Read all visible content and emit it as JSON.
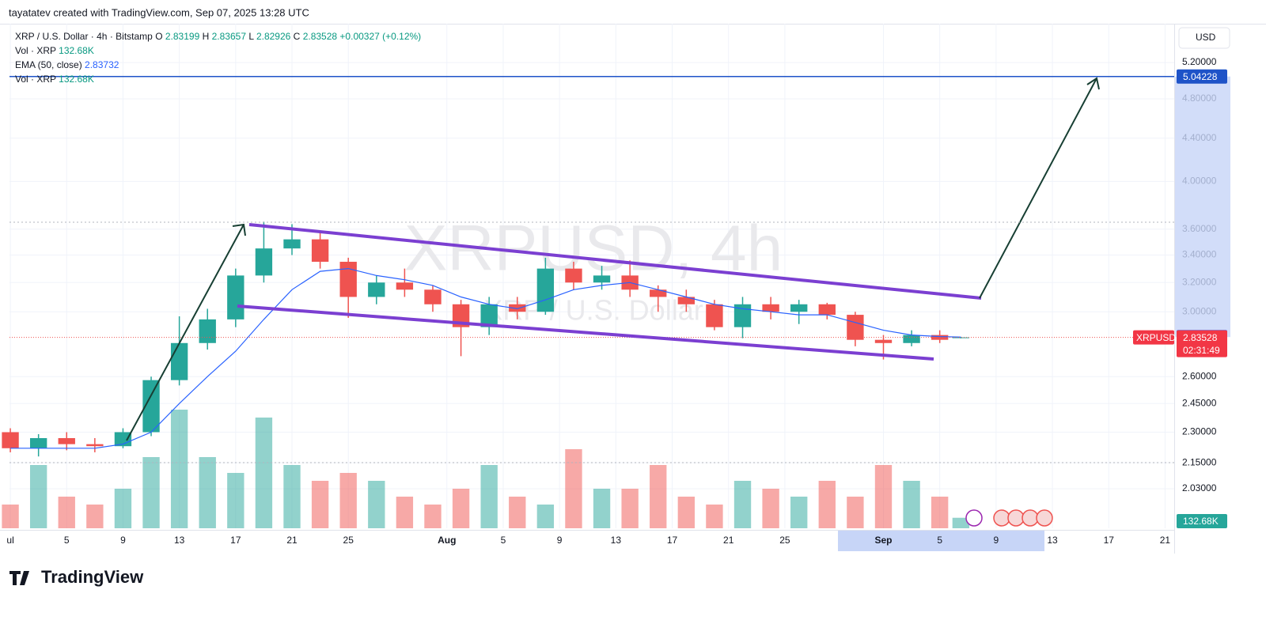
{
  "header": {
    "credit": "tayatatev created with TradingView.com, Sep 07, 2025 13:28 UTC",
    "currency": "USD",
    "logo": "TradingView"
  },
  "legend": {
    "symbol": "XRP / U.S. Dollar · 4h · Bitstamp",
    "o_label": "O",
    "o": 2.83199,
    "h_label": "H",
    "h": 2.83657,
    "l_label": "L",
    "l": 2.82926,
    "c_label": "C",
    "c": 2.83528,
    "change": "+0.00327 (+0.12%)",
    "vol_name": "Vol · XRP",
    "vol_value": "132.68K",
    "ema_name": "EMA (50, close)",
    "ema_value": 2.83732,
    "vol_name_2": "Vol · XRP",
    "vol_value_2": "132.68K"
  },
  "watermark": {
    "title": "XRPUSD, 4h",
    "subtitle": "XRP / U.S. Dollar"
  },
  "tags": {
    "symbol": "XRPUSD",
    "countdown": "02:31:49"
  },
  "chart_data": {
    "type": "candlestick",
    "log_scale": true,
    "grid": true,
    "up_color": "#26a69a",
    "down_color": "#ef5350",
    "ema_color": "#2962ff",
    "target_color": "#1e53c8",
    "target": 5.04228,
    "x": [
      0,
      2,
      4,
      6,
      8,
      10,
      12,
      14,
      16,
      18,
      20,
      22,
      24,
      26,
      28,
      30,
      32,
      34,
      36,
      38,
      40,
      42,
      44,
      46,
      48,
      50,
      52,
      54,
      56,
      58,
      60,
      62,
      64,
      66,
      67.5
    ],
    "open": [
      2.3,
      2.22,
      2.27,
      2.24,
      2.23,
      2.3,
      2.58,
      2.8,
      2.95,
      3.25,
      3.45,
      3.52,
      3.35,
      3.1,
      3.2,
      3.15,
      3.05,
      2.9,
      3.05,
      3.0,
      3.3,
      3.2,
      3.25,
      3.15,
      3.1,
      3.05,
      2.9,
      3.05,
      3.0,
      3.05,
      2.98,
      2.82,
      2.8,
      2.85,
      2.83199
    ],
    "high": [
      2.32,
      2.29,
      2.3,
      2.27,
      2.32,
      2.6,
      2.97,
      3.02,
      3.3,
      3.66,
      3.64,
      3.57,
      3.38,
      3.25,
      3.3,
      3.18,
      3.08,
      3.1,
      3.1,
      3.38,
      3.35,
      3.32,
      3.36,
      3.18,
      3.15,
      3.08,
      3.1,
      3.1,
      3.08,
      3.06,
      3.0,
      2.85,
      2.88,
      2.88,
      2.83657
    ],
    "low": [
      2.2,
      2.18,
      2.21,
      2.2,
      2.22,
      2.28,
      2.55,
      2.76,
      2.9,
      3.2,
      3.4,
      3.3,
      2.96,
      3.05,
      3.1,
      3.0,
      2.72,
      2.85,
      2.95,
      2.98,
      3.15,
      3.15,
      3.1,
      3.0,
      3.0,
      2.88,
      2.83,
      2.95,
      2.92,
      2.95,
      2.78,
      2.7,
      2.78,
      2.8,
      2.82926
    ],
    "close": [
      2.22,
      2.27,
      2.24,
      2.23,
      2.3,
      2.58,
      2.8,
      2.95,
      3.25,
      3.45,
      3.52,
      3.35,
      3.1,
      3.2,
      3.15,
      3.05,
      2.9,
      3.05,
      3.0,
      3.3,
      3.2,
      3.25,
      3.15,
      3.1,
      3.05,
      2.9,
      3.05,
      3.0,
      3.05,
      2.98,
      2.82,
      2.8,
      2.85,
      2.82,
      2.83528
    ],
    "ema": [
      2.22,
      2.22,
      2.22,
      2.22,
      2.24,
      2.3,
      2.45,
      2.6,
      2.75,
      2.95,
      3.15,
      3.28,
      3.3,
      3.25,
      3.22,
      3.18,
      3.1,
      3.05,
      3.02,
      3.08,
      3.15,
      3.18,
      3.2,
      3.15,
      3.1,
      3.05,
      3.02,
      3.0,
      2.98,
      2.98,
      2.93,
      2.88,
      2.85,
      2.84,
      2.83732
    ],
    "volume": [
      300,
      800,
      400,
      300,
      500,
      900,
      1500,
      900,
      700,
      1400,
      800,
      600,
      700,
      600,
      400,
      300,
      500,
      800,
      400,
      300,
      1000,
      500,
      500,
      800,
      400,
      300,
      600,
      500,
      400,
      600,
      400,
      800,
      600,
      400,
      132.68
    ],
    "volume_lim": [
      0,
      2000
    ],
    "xlim": [
      -0.06,
      82.65
    ],
    "ylim": [
      1.8605,
      5.665
    ],
    "xticks": [
      {
        "value": 0,
        "label": "ul"
      },
      {
        "value": 4,
        "label": "5"
      },
      {
        "value": 8,
        "label": "9"
      },
      {
        "value": 12,
        "label": "13"
      },
      {
        "value": 16,
        "label": "17"
      },
      {
        "value": 20,
        "label": "21"
      },
      {
        "value": 24,
        "label": "25"
      },
      {
        "value": 31,
        "label": "Aug"
      },
      {
        "value": 35,
        "label": "5"
      },
      {
        "value": 39,
        "label": "9"
      },
      {
        "value": 43,
        "label": "13"
      },
      {
        "value": 47,
        "label": "17"
      },
      {
        "value": 51,
        "label": "21"
      },
      {
        "value": 55,
        "label": "25"
      },
      {
        "value": 62,
        "label": "Sep"
      },
      {
        "value": 66,
        "label": "5"
      },
      {
        "value": 70,
        "label": "9"
      },
      {
        "value": 74,
        "label": "13"
      },
      {
        "value": 78,
        "label": "17"
      },
      {
        "value": 82,
        "label": "21"
      }
    ],
    "yticks": [
      {
        "value": 5.2,
        "label": "5.20000"
      },
      {
        "value": 4.8,
        "label": "4.80000"
      },
      {
        "value": 4.4,
        "label": "4.40000"
      },
      {
        "value": 4.0,
        "label": "4.00000"
      },
      {
        "value": 3.6,
        "label": "3.60000"
      },
      {
        "value": 3.4,
        "label": "3.40000"
      },
      {
        "value": 3.2,
        "label": "3.20000"
      },
      {
        "value": 3.0,
        "label": "3.00000"
      },
      {
        "value": 2.6,
        "label": "2.60000"
      },
      {
        "value": 2.45,
        "label": "2.45000"
      },
      {
        "value": 2.3,
        "label": "2.30000"
      },
      {
        "value": 2.15,
        "label": "2.15000"
      },
      {
        "value": 2.03,
        "label": "2.03000"
      }
    ]
  }
}
